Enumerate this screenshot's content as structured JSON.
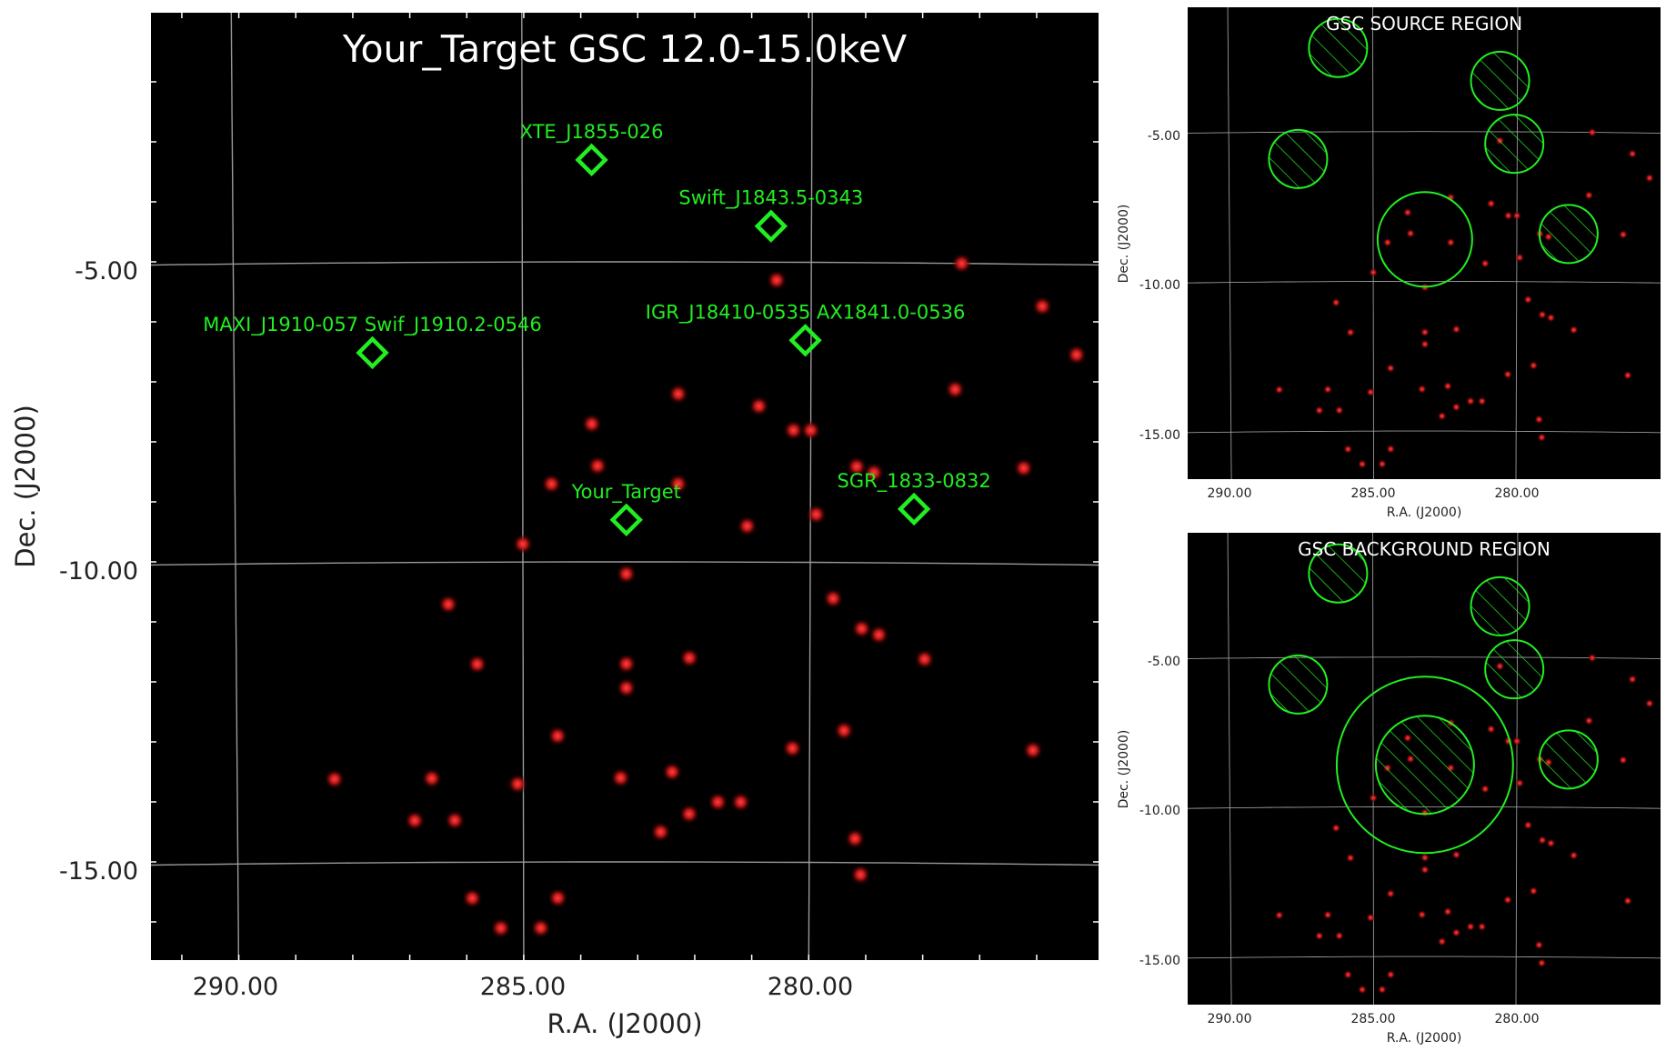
{
  "chart_data": [
    {
      "type": "scatter",
      "title": "Your_Target GSC 12.0-15.0keV",
      "xlabel": "R.A. (J2000)",
      "ylabel": "Dec. (J2000)",
      "x_ticks": [
        "290.00",
        "285.00",
        "280.00"
      ],
      "y_ticks": [
        "-5.00",
        "-10.00",
        "-15.00"
      ],
      "grid": true,
      "background": "#000000",
      "xlim": [
        292.2,
        275.7
      ],
      "ylim": [
        -17.3,
        -1.5
      ],
      "source_color": "#22ee22",
      "star_color": "#c01818",
      "catalog_sources": [
        {
          "name": "XTE_J1855-026",
          "ra": 283.8,
          "dec": -3.3
        },
        {
          "name": "Swift_J1843.5-0343",
          "ra": 280.7,
          "dec": -4.4
        },
        {
          "name": "IGR_J18410-0535 AX1841.0-0536",
          "ra": 280.1,
          "dec": -6.3
        },
        {
          "name": "MAXI_J1910-057 Swif_J1910.2-0546",
          "ra": 287.6,
          "dec": -6.5
        },
        {
          "name": "Your_Target",
          "ra": 283.2,
          "dec": -9.3
        },
        {
          "name": "SGR_1833-0832",
          "ra": 278.2,
          "dec": -9.1
        }
      ],
      "x_ray_sources": [
        [
          280.6,
          -5.3
        ],
        [
          277.4,
          -5.0
        ],
        [
          276.0,
          -5.7
        ],
        [
          275.4,
          -6.5
        ],
        [
          283.8,
          -7.7
        ],
        [
          282.3,
          -7.2
        ],
        [
          280.9,
          -7.4
        ],
        [
          280.3,
          -7.8
        ],
        [
          280.0,
          -7.8
        ],
        [
          277.5,
          -7.1
        ],
        [
          283.7,
          -8.4
        ],
        [
          284.5,
          -8.7
        ],
        [
          282.3,
          -8.7
        ],
        [
          279.2,
          -8.4
        ],
        [
          278.9,
          -8.5
        ],
        [
          279.9,
          -9.2
        ],
        [
          276.3,
          -8.4
        ],
        [
          281.1,
          -9.4
        ],
        [
          285.0,
          -9.7
        ],
        [
          283.2,
          -10.2
        ],
        [
          279.6,
          -10.6
        ],
        [
          286.3,
          -10.7
        ],
        [
          279.1,
          -11.1
        ],
        [
          278.8,
          -11.2
        ],
        [
          282.1,
          -11.6
        ],
        [
          285.8,
          -11.7
        ],
        [
          283.2,
          -11.7
        ],
        [
          283.2,
          -12.1
        ],
        [
          278.0,
          -11.6
        ],
        [
          279.4,
          -12.8
        ],
        [
          284.4,
          -12.9
        ],
        [
          280.3,
          -13.1
        ],
        [
          276.1,
          -13.1
        ],
        [
          288.3,
          -13.6
        ],
        [
          286.6,
          -13.6
        ],
        [
          285.1,
          -13.7
        ],
        [
          283.3,
          -13.6
        ],
        [
          282.4,
          -13.5
        ],
        [
          286.9,
          -14.3
        ],
        [
          286.2,
          -14.3
        ],
        [
          281.6,
          -14.0
        ],
        [
          281.2,
          -14.0
        ],
        [
          282.1,
          -14.2
        ],
        [
          282.6,
          -14.5
        ],
        [
          279.2,
          -14.6
        ],
        [
          279.1,
          -15.2
        ],
        [
          285.9,
          -15.6
        ],
        [
          284.4,
          -15.6
        ],
        [
          284.7,
          -16.1
        ],
        [
          285.4,
          -16.1
        ]
      ]
    },
    {
      "type": "scatter",
      "title": "GSC SOURCE REGION",
      "xlabel": "R.A. (J2000)",
      "ylabel": "Dec. (J2000)",
      "x_ticks": [
        "290.00",
        "285.00",
        "280.00"
      ],
      "y_ticks": [
        "-5.00",
        "-10.00",
        "-15.00"
      ],
      "grid": true,
      "background": "#000000"
    },
    {
      "type": "scatter",
      "title": "GSC BACKGROUND REGION",
      "xlabel": "R.A. (J2000)",
      "ylabel": "Dec. (J2000)",
      "x_ticks": [
        "290.00",
        "285.00",
        "280.00"
      ],
      "y_ticks": [
        "-5.00",
        "-10.00",
        "-15.00"
      ],
      "grid": true,
      "background": "#000000"
    }
  ]
}
